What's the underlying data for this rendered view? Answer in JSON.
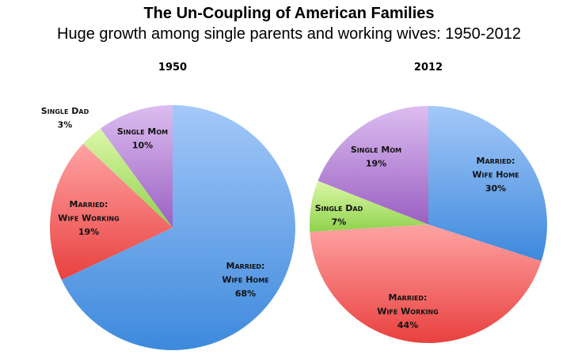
{
  "chart_data": [
    {
      "type": "pie",
      "title": "1950",
      "start": "top",
      "direction": "clockwise",
      "slices": [
        {
          "label": [
            "Married:",
            "Wife Home"
          ],
          "value": 68,
          "display": "68%",
          "color": [
            "#a4c8f8",
            "#3d89dc"
          ]
        },
        {
          "label": [
            "Married:",
            "Wife Working"
          ],
          "value": 19,
          "display": "19%",
          "color": [
            "#ffa3a3",
            "#e8413f"
          ]
        },
        {
          "label": [
            "Single Dad"
          ],
          "value": 3,
          "display": "3%",
          "color": [
            "#dcf7a8",
            "#8fd24c"
          ]
        },
        {
          "label": [
            "Single Mom"
          ],
          "value": 10,
          "display": "10%",
          "color": [
            "#dcbdf0",
            "#9a60c2"
          ]
        }
      ]
    },
    {
      "type": "pie",
      "title": "2012",
      "start": "top",
      "direction": "clockwise",
      "slices": [
        {
          "label": [
            "Married:",
            "Wife Home"
          ],
          "value": 30,
          "display": "30%",
          "color": [
            "#a4c8f8",
            "#3d89dc"
          ]
        },
        {
          "label": [
            "Married:",
            "Wife Working"
          ],
          "value": 44,
          "display": "44%",
          "color": [
            "#ffa3a3",
            "#e8413f"
          ]
        },
        {
          "label": [
            "Single Dad"
          ],
          "value": 7,
          "display": "7%",
          "color": [
            "#dcf7a8",
            "#8fd24c"
          ]
        },
        {
          "label": [
            "Single Mom"
          ],
          "value": 19,
          "display": "19%",
          "color": [
            "#dcbdf0",
            "#9a60c2"
          ]
        }
      ]
    }
  ],
  "title": "The Un-Coupling of American Families",
  "subtitle": "Huge growth among single parents and working wives: 1950-2012"
}
